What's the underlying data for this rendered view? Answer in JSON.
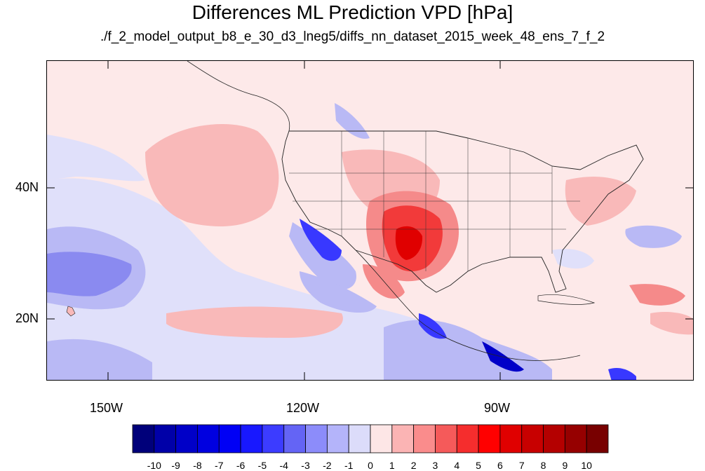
{
  "title": "Differences ML Prediction VPD [hPa]",
  "subtitle": "./f_2_model_output_b8_e_30_d3_lneg5/diffs_nn_dataset_2015_week_48_ens_7_f_2",
  "lat_labels": [
    "40N",
    "20N"
  ],
  "lon_labels": [
    "150W",
    "120W",
    "90W"
  ],
  "colorbar": {
    "labels": [
      "-10",
      "-9",
      "-8",
      "-7",
      "-6",
      "-5",
      "-4",
      "-3",
      "-2",
      "-1",
      "0",
      "1",
      "2",
      "3",
      "4",
      "5",
      "6",
      "7",
      "8",
      "9",
      "10"
    ],
    "colors": [
      "#00007a",
      "#0000a8",
      "#0000c8",
      "#0000e0",
      "#0000f5",
      "#1818ff",
      "#3c3cff",
      "#6464f5",
      "#8c8cfa",
      "#b4b4fa",
      "#dcdcfa",
      "#fde6e6",
      "#fbb4b4",
      "#fa8c8c",
      "#f55a5a",
      "#f52d2d",
      "#ff0000",
      "#e00000",
      "#c80000",
      "#b40000",
      "#960000",
      "#780000"
    ]
  },
  "colors": {
    "background_positive_small": "#fde9e9",
    "pale_blue": "#e0e0fa",
    "light_blue": "#b9b9f5",
    "mid_blue": "#8a8af0",
    "strong_blue": "#3838ff",
    "dark_blue": "#0000c8",
    "light_red": "#f9b9b9",
    "mid_red": "#f58a8a",
    "strong_red": "#f23a3a",
    "deep_red": "#e00000"
  }
}
